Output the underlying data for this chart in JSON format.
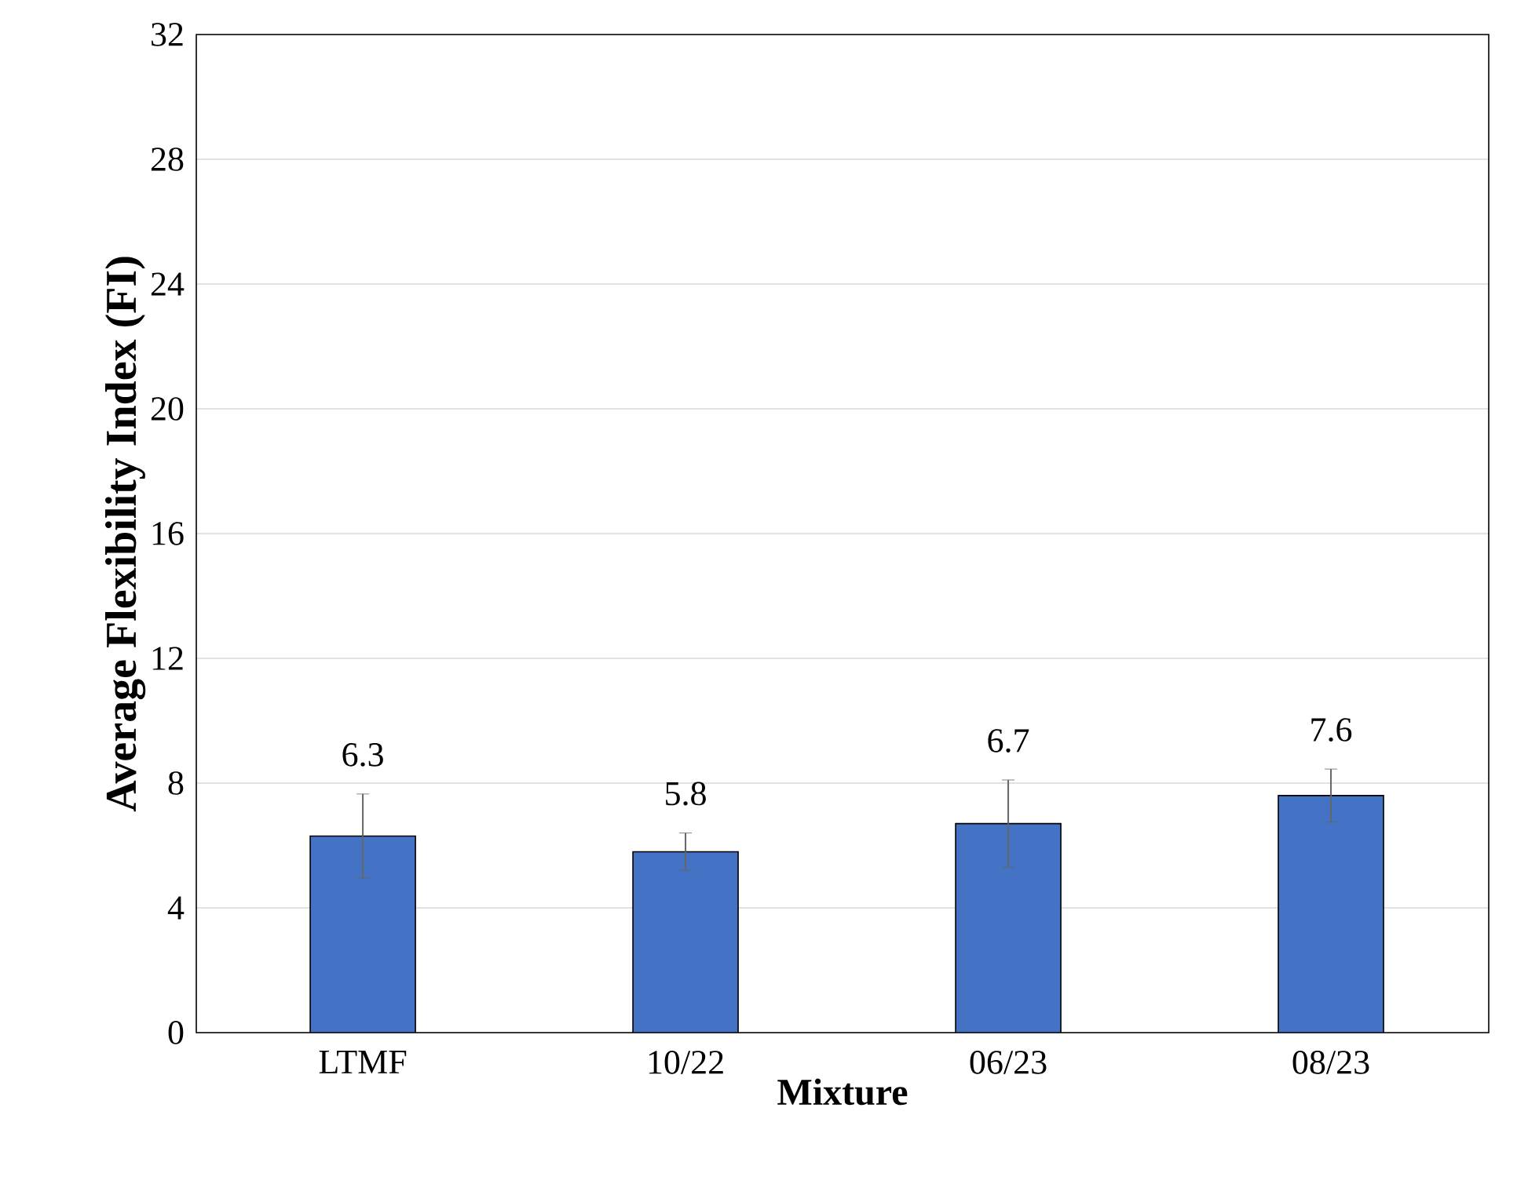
{
  "chart_data": {
    "type": "bar",
    "xlabel": "Mixture",
    "ylabel": "Average Flexibility Index (FI)",
    "categories": [
      "LTMF",
      "10/22",
      "06/23",
      "08/23"
    ],
    "values": [
      6.3,
      5.8,
      6.7,
      7.6
    ],
    "errors": [
      1.35,
      0.6,
      1.4,
      0.85
    ],
    "color": "#4472c4",
    "data_labels": true,
    "ylim": [
      0,
      32
    ],
    "yticks": [
      0,
      4,
      8,
      12,
      16,
      20,
      24,
      28,
      32
    ],
    "grid": "y"
  }
}
